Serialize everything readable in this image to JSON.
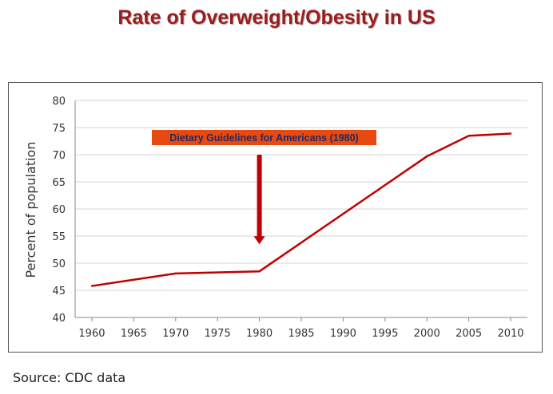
{
  "title": "Rate of Overweight/Obesity in US",
  "source": "Source: CDC data",
  "chart_data": {
    "type": "line",
    "title": "Rate of Overweight/Obesity in US",
    "xlabel": "",
    "ylabel": "Percent of population",
    "x_ticks": [
      1960,
      1965,
      1970,
      1975,
      1980,
      1985,
      1990,
      1995,
      2000,
      2005,
      2010
    ],
    "y_ticks": [
      40,
      45,
      50,
      55,
      60,
      65,
      70,
      75,
      80
    ],
    "xlim": [
      1958,
      2012
    ],
    "ylim": [
      40,
      80
    ],
    "grid": "horizontal",
    "legend": "none",
    "series": [
      {
        "color": "#c00000",
        "points": [
          {
            "x": 1960,
            "y": 45.8
          },
          {
            "x": 1970,
            "y": 48.1
          },
          {
            "x": 1980,
            "y": 48.5
          },
          {
            "x": 2000,
            "y": 69.7
          },
          {
            "x": 2005,
            "y": 73.5
          },
          {
            "x": 2010,
            "y": 73.9
          }
        ]
      }
    ],
    "annotations": [
      {
        "text": "Dietary Guidelines for Americans (1980)",
        "x": 1980,
        "arrow_from_y": 70,
        "arrow_to_y": 53.5,
        "box_color": "#e8490f",
        "text_color": "#1f2a6b",
        "arrow_color": "#c00000"
      }
    ]
  }
}
